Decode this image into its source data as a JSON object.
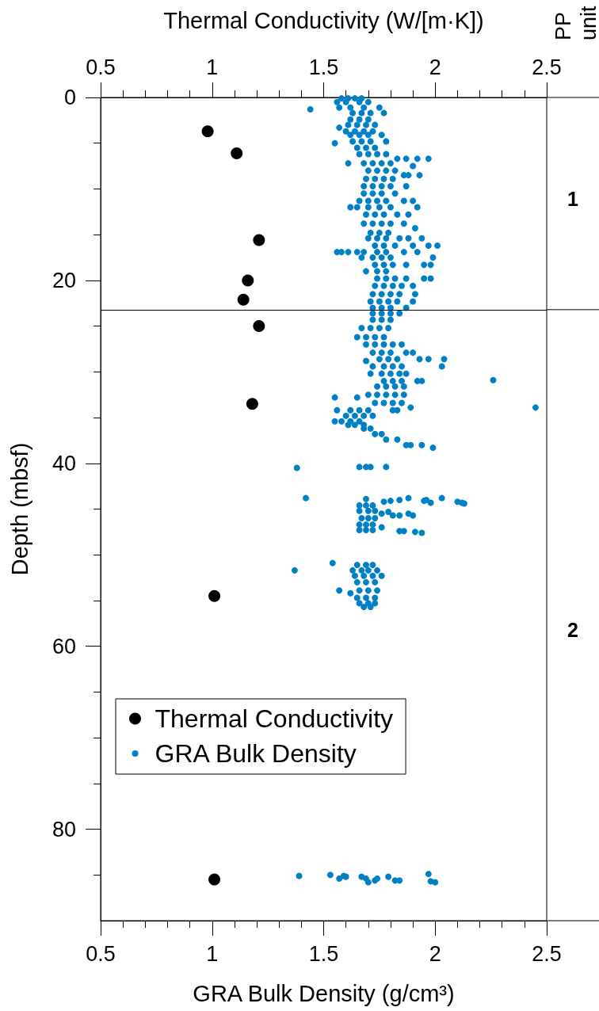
{
  "chart_data": {
    "type": "scatter",
    "x2label": "Thermal Conductivity (W/[m·K])",
    "xlabel": "GRA Bulk Density (g/cm³)",
    "ylabel": "Depth (mbsf)",
    "xlim": [
      0.5,
      2.5
    ],
    "xticks": [
      0.5,
      {
        "value": 0.6,
        "label": null
      },
      {
        "value": 0.7,
        "label": null
      },
      {
        "value": 0.8,
        "label": null
      },
      {
        "value": 0.9,
        "label": null
      },
      1,
      {
        "value": 1.1,
        "label": null
      },
      {
        "value": 1.2,
        "label": null
      },
      {
        "value": 1.3,
        "label": null
      },
      {
        "value": 1.4,
        "label": null
      },
      1.5,
      {
        "value": 1.6,
        "label": null
      },
      {
        "value": 1.7,
        "label": null
      },
      {
        "value": 1.8,
        "label": null
      },
      {
        "value": 1.9,
        "label": null
      },
      2,
      {
        "value": 2.1,
        "label": null
      },
      {
        "value": 2.2,
        "label": null
      },
      {
        "value": 2.3,
        "label": null
      },
      {
        "value": 2.4,
        "label": null
      },
      2.5
    ],
    "x2lim": [
      0.5,
      2.5
    ],
    "x2ticks": [
      0.5,
      {
        "value": 0.6,
        "label": null
      },
      {
        "value": 0.7,
        "label": null
      },
      {
        "value": 0.8,
        "label": null
      },
      {
        "value": 0.9,
        "label": null
      },
      1,
      {
        "value": 1.1,
        "label": null
      },
      {
        "value": 1.2,
        "label": null
      },
      {
        "value": 1.3,
        "label": null
      },
      {
        "value": 1.4,
        "label": null
      },
      1.5,
      {
        "value": 1.6,
        "label": null
      },
      {
        "value": 1.7,
        "label": null
      },
      {
        "value": 1.8,
        "label": null
      },
      {
        "value": 1.9,
        "label": null
      },
      2,
      {
        "value": 2.1,
        "label": null
      },
      {
        "value": 2.2,
        "label": null
      },
      {
        "value": 2.3,
        "label": null
      },
      {
        "value": 2.4,
        "label": null
      },
      2.5
    ],
    "ylim": [
      90,
      0
    ],
    "yticks": [
      0,
      {
        "value": 5,
        "label": null
      },
      {
        "value": 10,
        "label": null
      },
      {
        "value": 15,
        "label": null
      },
      20,
      {
        "value": 25,
        "label": null
      },
      {
        "value": 30,
        "label": null
      },
      {
        "value": 35,
        "label": null
      },
      40,
      {
        "value": 45,
        "label": null
      },
      {
        "value": 50,
        "label": null
      },
      {
        "value": 55,
        "label": null
      },
      60,
      {
        "value": 65,
        "label": null
      },
      {
        "value": 70,
        "label": null
      },
      {
        "value": 75,
        "label": null
      },
      80,
      {
        "value": 85,
        "label": null
      }
    ],
    "series": [
      {
        "name": "Thermal Conductivity",
        "color": "#000000",
        "x": [
          0.98,
          1.11,
          1.21,
          1.16,
          1.14,
          1.21,
          1.18,
          1.01,
          1.01
        ],
        "values": [
          3.7,
          6.1,
          15.6,
          20,
          22.1,
          25,
          33.5,
          54.5,
          85.5
        ]
      },
      {
        "name": "GRA Bulk Density",
        "color": "#0080c4",
        "x": [
          1.58,
          1.61,
          1.64,
          1.67,
          1.56,
          1.6,
          1.66,
          1.7,
          1.57,
          1.62,
          1.68,
          1.75,
          1.44,
          1.63,
          1.67,
          1.71,
          1.77,
          1.62,
          1.66,
          1.7,
          1.61,
          1.65,
          1.69,
          1.73,
          1.57,
          1.6,
          1.64,
          1.68,
          1.72,
          1.62,
          1.66,
          1.7,
          1.76,
          1.63,
          1.67,
          1.71,
          1.78,
          1.55,
          1.65,
          1.69,
          1.73,
          1.66,
          1.7,
          1.74,
          1.78,
          1.83,
          1.87,
          1.92,
          1.97,
          1.61,
          1.68,
          1.72,
          1.76,
          1.8,
          1.9,
          1.7,
          1.74,
          1.78,
          1.82,
          1.86,
          1.88,
          1.93,
          1.69,
          1.73,
          1.77,
          1.81,
          1.68,
          1.72,
          1.76,
          1.8,
          1.87,
          1.68,
          1.72,
          1.76,
          1.82,
          1.66,
          1.7,
          1.74,
          1.78,
          1.86,
          1.9,
          1.62,
          1.65,
          1.7,
          1.75,
          1.8,
          1.92,
          1.69,
          1.73,
          1.77,
          1.83,
          1.88,
          1.68,
          1.72,
          1.76,
          1.8,
          1.86,
          1.91,
          1.71,
          1.75,
          1.79,
          1.7,
          1.74,
          1.78,
          1.84,
          1.88,
          1.94,
          1.73,
          1.77,
          1.82,
          1.9,
          1.97,
          2.01,
          1.56,
          1.58,
          1.61,
          1.65,
          1.68,
          1.74,
          1.78,
          1.86,
          1.92,
          1.67,
          1.72,
          1.76,
          1.8,
          1.99,
          1.73,
          1.77,
          1.81,
          1.87,
          1.95,
          1.98,
          1.69,
          1.74,
          1.78,
          1.74,
          1.78,
          1.82,
          1.87,
          1.95,
          1.98,
          1.73,
          1.77,
          1.81,
          1.85,
          1.9,
          1.72,
          1.76,
          1.8,
          1.84,
          1.91,
          1.71,
          1.75,
          1.79,
          1.83,
          1.9,
          1.72,
          1.76,
          1.8,
          1.87,
          1.72,
          1.76,
          1.8,
          1.84,
          1.72,
          1.76,
          1.8,
          1.67,
          1.71,
          1.75,
          1.79,
          1.65,
          1.69,
          1.73,
          1.77,
          1.69,
          1.73,
          1.77,
          1.81,
          1.85,
          1.72,
          1.76,
          1.8,
          1.87,
          1.9,
          1.75,
          1.79,
          1.83,
          1.93,
          1.97,
          2.04,
          1.69,
          1.72,
          1.77,
          1.81,
          1.85,
          2.03,
          1.71,
          1.76,
          1.8,
          1.84,
          1.87,
          2.26,
          1.77,
          1.81,
          1.85,
          1.92,
          1.94,
          1.74,
          1.78,
          1.82,
          1.86,
          1.7,
          1.74,
          1.78,
          1.82,
          1.86,
          1.55,
          1.65,
          1.73,
          1.77,
          1.81,
          1.85,
          1.89,
          2.45,
          1.56,
          1.62,
          1.66,
          1.7,
          1.81,
          1.83,
          1.6,
          1.64,
          1.68,
          1.72,
          1.55,
          1.58,
          1.62,
          1.66,
          1.61,
          1.64,
          1.68,
          1.68,
          1.71,
          1.73,
          1.76,
          1.78,
          1.83,
          1.87,
          1.89,
          1.94,
          1.99,
          1.38,
          1.66,
          1.69,
          1.71,
          1.78,
          1.42,
          1.69,
          1.77,
          1.8,
          1.84,
          1.88,
          1.95,
          1.96,
          1.98,
          2.03,
          2.1,
          2.12,
          2.13,
          1.66,
          1.69,
          1.72,
          1.66,
          1.7,
          1.73,
          1.67,
          1.7,
          1.73,
          1.66,
          1.69,
          1.72,
          1.66,
          1.69,
          1.72,
          1.76,
          1.79,
          1.81,
          1.84,
          1.88,
          1.9,
          1.76,
          1.84,
          1.86,
          1.91,
          1.94,
          1.54,
          1.65,
          1.69,
          1.72,
          1.37,
          1.63,
          1.67,
          1.7,
          1.74,
          1.64,
          1.68,
          1.72,
          1.76,
          1.65,
          1.69,
          1.73,
          1.57,
          1.66,
          1.7,
          1.74,
          1.62,
          1.65,
          1.69,
          1.73,
          1.66,
          1.7,
          1.73,
          1.68,
          1.71,
          1.39,
          1.53,
          1.57,
          1.59,
          1.6,
          1.67,
          1.69,
          1.7,
          1.73,
          1.74,
          1.79,
          1.82,
          1.84,
          1.97,
          1.98,
          2.0
        ],
        "values": [
          0.1,
          0.1,
          0.1,
          0.1,
          0.5,
          0.5,
          0.5,
          0.5,
          1.1,
          1.1,
          1.1,
          1.1,
          1.3,
          1.7,
          1.7,
          1.7,
          1.7,
          2.4,
          2.4,
          2.4,
          3,
          3,
          3,
          3,
          3.3,
          3.7,
          3.7,
          3.7,
          3.7,
          4.1,
          4.1,
          4.1,
          4.1,
          4.8,
          4.8,
          4.8,
          4.8,
          5,
          5.5,
          5.5,
          5.5,
          6.2,
          6.2,
          6.2,
          6.2,
          6.7,
          6.7,
          6.7,
          6.7,
          7.2,
          7.2,
          7.2,
          7.2,
          7.2,
          7.5,
          8,
          8,
          8,
          8,
          8.5,
          8.5,
          8.5,
          8.9,
          8.9,
          8.9,
          8.9,
          9.7,
          9.7,
          9.7,
          9.7,
          9.7,
          10.5,
          10.5,
          10.5,
          10.5,
          11.3,
          11.3,
          11.3,
          11.3,
          11.3,
          11.3,
          12,
          12,
          12,
          12,
          12,
          12,
          12.8,
          12.8,
          12.8,
          12.8,
          12.8,
          13.8,
          13.8,
          13.8,
          13.8,
          13.8,
          14.3,
          14.8,
          14.8,
          14.8,
          15.4,
          15.4,
          15.4,
          15.4,
          15.4,
          15.4,
          16.2,
          16.2,
          16.2,
          16.2,
          16.2,
          16.2,
          16.9,
          16.9,
          16.9,
          16.9,
          16.9,
          16.9,
          16.9,
          16.9,
          16.9,
          17.5,
          17.5,
          17.5,
          17.5,
          17.5,
          18.3,
          18.3,
          18.3,
          18.3,
          18.3,
          18.3,
          19,
          19,
          19,
          19.8,
          19.8,
          19.8,
          19.8,
          19.8,
          19.8,
          20.6,
          20.6,
          20.6,
          20.6,
          20.6,
          21.5,
          21.5,
          21.5,
          21.5,
          21.5,
          22.3,
          22.3,
          22.3,
          22.3,
          22.3,
          23,
          23,
          23,
          23,
          23.6,
          23.6,
          23.6,
          23.6,
          24.3,
          24.3,
          24.3,
          25.2,
          25.2,
          25.2,
          25.2,
          26.2,
          26.2,
          26.2,
          26.2,
          27,
          27,
          27,
          27,
          27,
          27.9,
          27.9,
          27.9,
          27.9,
          27.9,
          28.6,
          28.6,
          28.6,
          28.6,
          28.6,
          28.6,
          28.8,
          29.4,
          29.4,
          29.4,
          29.4,
          29.4,
          30.2,
          30.2,
          30.2,
          30.2,
          30.2,
          30.9,
          31,
          31,
          31,
          31,
          31,
          31.6,
          31.6,
          31.6,
          31.6,
          32.5,
          32.5,
          32.5,
          32.5,
          32.5,
          32.8,
          32.8,
          33.4,
          33.4,
          33.4,
          33.4,
          33.9,
          33.9,
          34.2,
          34.2,
          34.2,
          34.2,
          34.2,
          34.2,
          34.8,
          34.8,
          34.8,
          34.8,
          35.4,
          35.4,
          35.4,
          35.4,
          35.8,
          35.8,
          35.8,
          36.2,
          36.2,
          36.8,
          36.8,
          37.4,
          37.4,
          38,
          38,
          38,
          38.3,
          40.5,
          40.4,
          40.4,
          40.4,
          40.4,
          43.8,
          43.9,
          44.2,
          44.1,
          44,
          43.8,
          44.1,
          44,
          44.3,
          43.8,
          44.2,
          44.3,
          44.4,
          44.6,
          44.6,
          44.6,
          45.2,
          45.2,
          45.2,
          46,
          46,
          46,
          46.7,
          46.7,
          46.7,
          47.3,
          47.3,
          47.3,
          45.5,
          45.3,
          45.7,
          45.7,
          45.5,
          45.7,
          47,
          47.4,
          47.4,
          47.5,
          47.6,
          50.9,
          51.1,
          51.1,
          51.1,
          51.7,
          51.7,
          51.7,
          51.7,
          51.7,
          52.3,
          52.3,
          52.3,
          52.3,
          53,
          53,
          53,
          53.9,
          53.9,
          53.9,
          53.9,
          54.2,
          54.7,
          54.7,
          54.7,
          55.3,
          55.3,
          55.3,
          55.7,
          55.7,
          85.1,
          85,
          85.4,
          85.1,
          85.2,
          85.2,
          85.4,
          85.8,
          85.6,
          85.4,
          85.2,
          85.6,
          85.6,
          84.9,
          85.7,
          85.8
        ]
      }
    ],
    "ref_lines": [
      {
        "axis": "y",
        "value": 23.2
      }
    ],
    "annotations": [
      "PP unit",
      "1",
      "2"
    ],
    "legend": "bottom left",
    "marker": "circle"
  }
}
